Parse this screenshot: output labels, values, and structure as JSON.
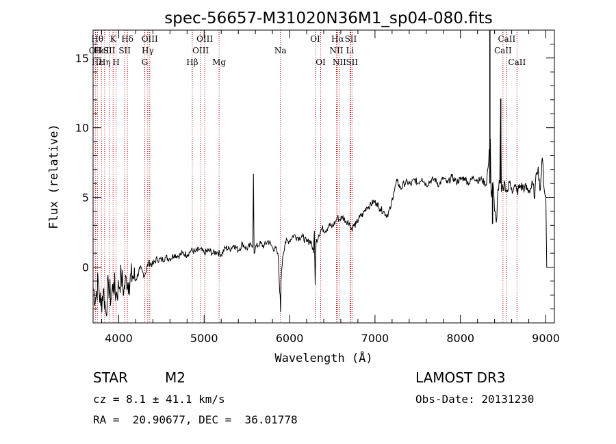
{
  "chart_data": {
    "type": "line",
    "title": "spec-56657-M31020N36M1_sp04-080.fits",
    "xlabel": "Wavelength (Å)",
    "ylabel": "Flux (relative)",
    "xlim": [
      3700,
      9100
    ],
    "ylim": [
      -4,
      17
    ],
    "xticks": [
      4000,
      5000,
      6000,
      7000,
      8000,
      9000
    ],
    "yticks": [
      0,
      5,
      10,
      15
    ],
    "xtick_labels": [
      "4000",
      "5000",
      "6000",
      "7000",
      "8000",
      "9000"
    ],
    "ytick_labels": [
      "0",
      "5",
      "10",
      "15"
    ],
    "series": [
      {
        "name": "flux",
        "points": [
          [
            3700,
            -1.5
          ],
          [
            3730,
            -2.2
          ],
          [
            3760,
            -1.0
          ],
          [
            3790,
            -2.8
          ],
          [
            3820,
            -1.6
          ],
          [
            3850,
            -3.2
          ],
          [
            3880,
            -1.2
          ],
          [
            3910,
            -2.3
          ],
          [
            3940,
            -1.1
          ],
          [
            3970,
            -2.0
          ],
          [
            4000,
            -1.4
          ],
          [
            4030,
            -0.6
          ],
          [
            4060,
            -1.7
          ],
          [
            4090,
            -0.8
          ],
          [
            4120,
            -1.1
          ],
          [
            4160,
            -0.6
          ],
          [
            4200,
            -0.9
          ],
          [
            4250,
            -0.1
          ],
          [
            4300,
            -0.6
          ],
          [
            4350,
            0.3
          ],
          [
            4400,
            0.2
          ],
          [
            4450,
            0.6
          ],
          [
            4500,
            0.5
          ],
          [
            4550,
            0.7
          ],
          [
            4600,
            0.6
          ],
          [
            4650,
            0.9
          ],
          [
            4700,
            0.8
          ],
          [
            4750,
            1.0
          ],
          [
            4800,
            0.9
          ],
          [
            4850,
            1.2
          ],
          [
            4900,
            1.1
          ],
          [
            4950,
            1.3
          ],
          [
            5000,
            1.0
          ],
          [
            5050,
            1.2
          ],
          [
            5100,
            1.0
          ],
          [
            5150,
            1.1
          ],
          [
            5200,
            0.9
          ],
          [
            5250,
            1.4
          ],
          [
            5300,
            1.3
          ],
          [
            5350,
            1.6
          ],
          [
            5400,
            1.2
          ],
          [
            5450,
            1.7
          ],
          [
            5500,
            1.3
          ],
          [
            5550,
            1.6
          ],
          [
            5570,
            1.6
          ],
          [
            5577,
            6.7
          ],
          [
            5584,
            1.0
          ],
          [
            5600,
            1.4
          ],
          [
            5650,
            1.7
          ],
          [
            5700,
            1.5
          ],
          [
            5750,
            1.9
          ],
          [
            5800,
            1.4
          ],
          [
            5850,
            1.2
          ],
          [
            5870,
            0.6
          ],
          [
            5880,
            -1.2
          ],
          [
            5890,
            -2.0
          ],
          [
            5895,
            -3.2
          ],
          [
            5900,
            -1.0
          ],
          [
            5920,
            0.8
          ],
          [
            5950,
            1.8
          ],
          [
            6000,
            1.9
          ],
          [
            6050,
            2.3
          ],
          [
            6100,
            2.1
          ],
          [
            6150,
            2.2
          ],
          [
            6200,
            1.8
          ],
          [
            6250,
            1.9
          ],
          [
            6280,
            1.0
          ],
          [
            6290,
            2.6
          ],
          [
            6300,
            -1.3
          ],
          [
            6310,
            1.8
          ],
          [
            6340,
            2.3
          ],
          [
            6380,
            2.8
          ],
          [
            6420,
            2.6
          ],
          [
            6460,
            3.0
          ],
          [
            6500,
            2.9
          ],
          [
            6540,
            3.3
          ],
          [
            6560,
            3.6
          ],
          [
            6580,
            3.4
          ],
          [
            6620,
            3.6
          ],
          [
            6660,
            3.3
          ],
          [
            6700,
            3.2
          ],
          [
            6720,
            2.7
          ],
          [
            6740,
            2.9
          ],
          [
            6780,
            3.1
          ],
          [
            6820,
            3.6
          ],
          [
            6860,
            3.8
          ],
          [
            6900,
            4.3
          ],
          [
            6940,
            4.4
          ],
          [
            6980,
            4.7
          ],
          [
            7020,
            4.6
          ],
          [
            7060,
            4.2
          ],
          [
            7100,
            4.0
          ],
          [
            7140,
            3.7
          ],
          [
            7180,
            4.2
          ],
          [
            7220,
            5.4
          ],
          [
            7260,
            6.2
          ],
          [
            7300,
            5.6
          ],
          [
            7340,
            6.0
          ],
          [
            7380,
            6.1
          ],
          [
            7420,
            5.9
          ],
          [
            7460,
            6.3
          ],
          [
            7500,
            6.0
          ],
          [
            7550,
            6.4
          ],
          [
            7600,
            5.9
          ],
          [
            7650,
            6.2
          ],
          [
            7700,
            6.3
          ],
          [
            7750,
            5.9
          ],
          [
            7800,
            6.4
          ],
          [
            7850,
            6.0
          ],
          [
            7900,
            6.5
          ],
          [
            7950,
            6.1
          ],
          [
            8000,
            6.3
          ],
          [
            8050,
            6.4
          ],
          [
            8100,
            6.0
          ],
          [
            8150,
            6.5
          ],
          [
            8200,
            6.2
          ],
          [
            8250,
            6.3
          ],
          [
            8300,
            5.9
          ],
          [
            8330,
            7.5
          ],
          [
            8350,
            9.2
          ],
          [
            8360,
            5.0
          ],
          [
            8380,
            6.1
          ],
          [
            8400,
            4.0
          ],
          [
            8420,
            3.2
          ],
          [
            8440,
            5.6
          ],
          [
            8460,
            6.0
          ],
          [
            8470,
            11.0
          ],
          [
            8480,
            5.4
          ],
          [
            8500,
            5.6
          ],
          [
            8520,
            6.1
          ],
          [
            8540,
            5.4
          ],
          [
            8560,
            5.6
          ],
          [
            8580,
            6.2
          ],
          [
            8600,
            5.7
          ],
          [
            8620,
            5.5
          ],
          [
            8640,
            5.8
          ],
          [
            8660,
            5.4
          ],
          [
            8700,
            5.8
          ],
          [
            8750,
            5.7
          ],
          [
            8800,
            5.5
          ],
          [
            8850,
            5.9
          ],
          [
            8870,
            5.0
          ],
          [
            8890,
            6.8
          ],
          [
            8910,
            7.2
          ],
          [
            8930,
            5.5
          ],
          [
            8960,
            7.8
          ],
          [
            8980,
            5.6
          ],
          [
            9000,
            5.1
          ],
          [
            9010,
            0.0
          ]
        ]
      }
    ],
    "spikes": [
      {
        "x": 8345,
        "y": 17
      },
      {
        "x": 8472,
        "y": 12.1
      },
      {
        "x": 8376,
        "y": 3.1
      }
    ],
    "lines": [
      {
        "x": 3727,
        "labels": [
          "OII"
        ],
        "rows": [
          1
        ]
      },
      {
        "x": 3750,
        "labels": [
          "Hθ",
          "Hε"
        ],
        "rows": [
          0,
          2
        ]
      },
      {
        "x": 3798,
        "labels": [
          "HeI"
        ],
        "rows": [
          1
        ]
      },
      {
        "x": 3835,
        "labels": [
          "Hη"
        ],
        "rows": [
          2
        ]
      },
      {
        "x": 3889,
        "labels": [
          "SII"
        ],
        "rows": [
          1
        ]
      },
      {
        "x": 3934,
        "labels": [
          "K"
        ],
        "rows": [
          0
        ]
      },
      {
        "x": 3969,
        "labels": [
          "H"
        ],
        "rows": [
          2
        ]
      },
      {
        "x": 4070,
        "labels": [
          "SII"
        ],
        "rows": [
          1
        ]
      },
      {
        "x": 4102,
        "labels": [
          "Hδ"
        ],
        "rows": [
          0
        ]
      },
      {
        "x": 4305,
        "labels": [
          "G"
        ],
        "rows": [
          2
        ]
      },
      {
        "x": 4340,
        "labels": [
          "Hγ"
        ],
        "rows": [
          1
        ]
      },
      {
        "x": 4363,
        "labels": [
          "OIII"
        ],
        "rows": [
          0
        ]
      },
      {
        "x": 4861,
        "labels": [
          "Hβ"
        ],
        "rows": [
          2
        ]
      },
      {
        "x": 4959,
        "labels": [
          "OIII"
        ],
        "rows": [
          1
        ]
      },
      {
        "x": 5007,
        "labels": [
          "OIII"
        ],
        "rows": [
          0
        ]
      },
      {
        "x": 5175,
        "labels": [
          "Mg"
        ],
        "rows": [
          2
        ]
      },
      {
        "x": 5893,
        "labels": [
          "Na"
        ],
        "rows": [
          1
        ]
      },
      {
        "x": 6300,
        "labels": [
          "OI"
        ],
        "rows": [
          0
        ]
      },
      {
        "x": 6364,
        "labels": [
          "OI"
        ],
        "rows": [
          2
        ]
      },
      {
        "x": 6548,
        "labels": [
          "NII"
        ],
        "rows": [
          1
        ]
      },
      {
        "x": 6563,
        "labels": [
          "Hα"
        ],
        "rows": [
          0
        ]
      },
      {
        "x": 6583,
        "labels": [
          "NII"
        ],
        "rows": [
          2
        ]
      },
      {
        "x": 6708,
        "labels": [
          "Li"
        ],
        "rows": [
          1
        ]
      },
      {
        "x": 6716,
        "labels": [
          "SII"
        ],
        "rows": [
          0
        ]
      },
      {
        "x": 6731,
        "labels": [
          "SII"
        ],
        "rows": [
          2
        ]
      },
      {
        "x": 8498,
        "labels": [
          "CaII"
        ],
        "rows": [
          1
        ]
      },
      {
        "x": 8542,
        "labels": [
          "CaII"
        ],
        "rows": [
          0
        ]
      },
      {
        "x": 8662,
        "labels": [
          "CaII"
        ],
        "rows": [
          2
        ]
      }
    ]
  },
  "info": {
    "class": "STAR",
    "subclass": "M2",
    "survey": "LAMOST DR3",
    "cz": "cz = 8.1 ± 41.1 km/s",
    "obs_date": "Obs-Date: 20131230",
    "coords": "RA =  20.90677, DEC =  36.01778"
  }
}
